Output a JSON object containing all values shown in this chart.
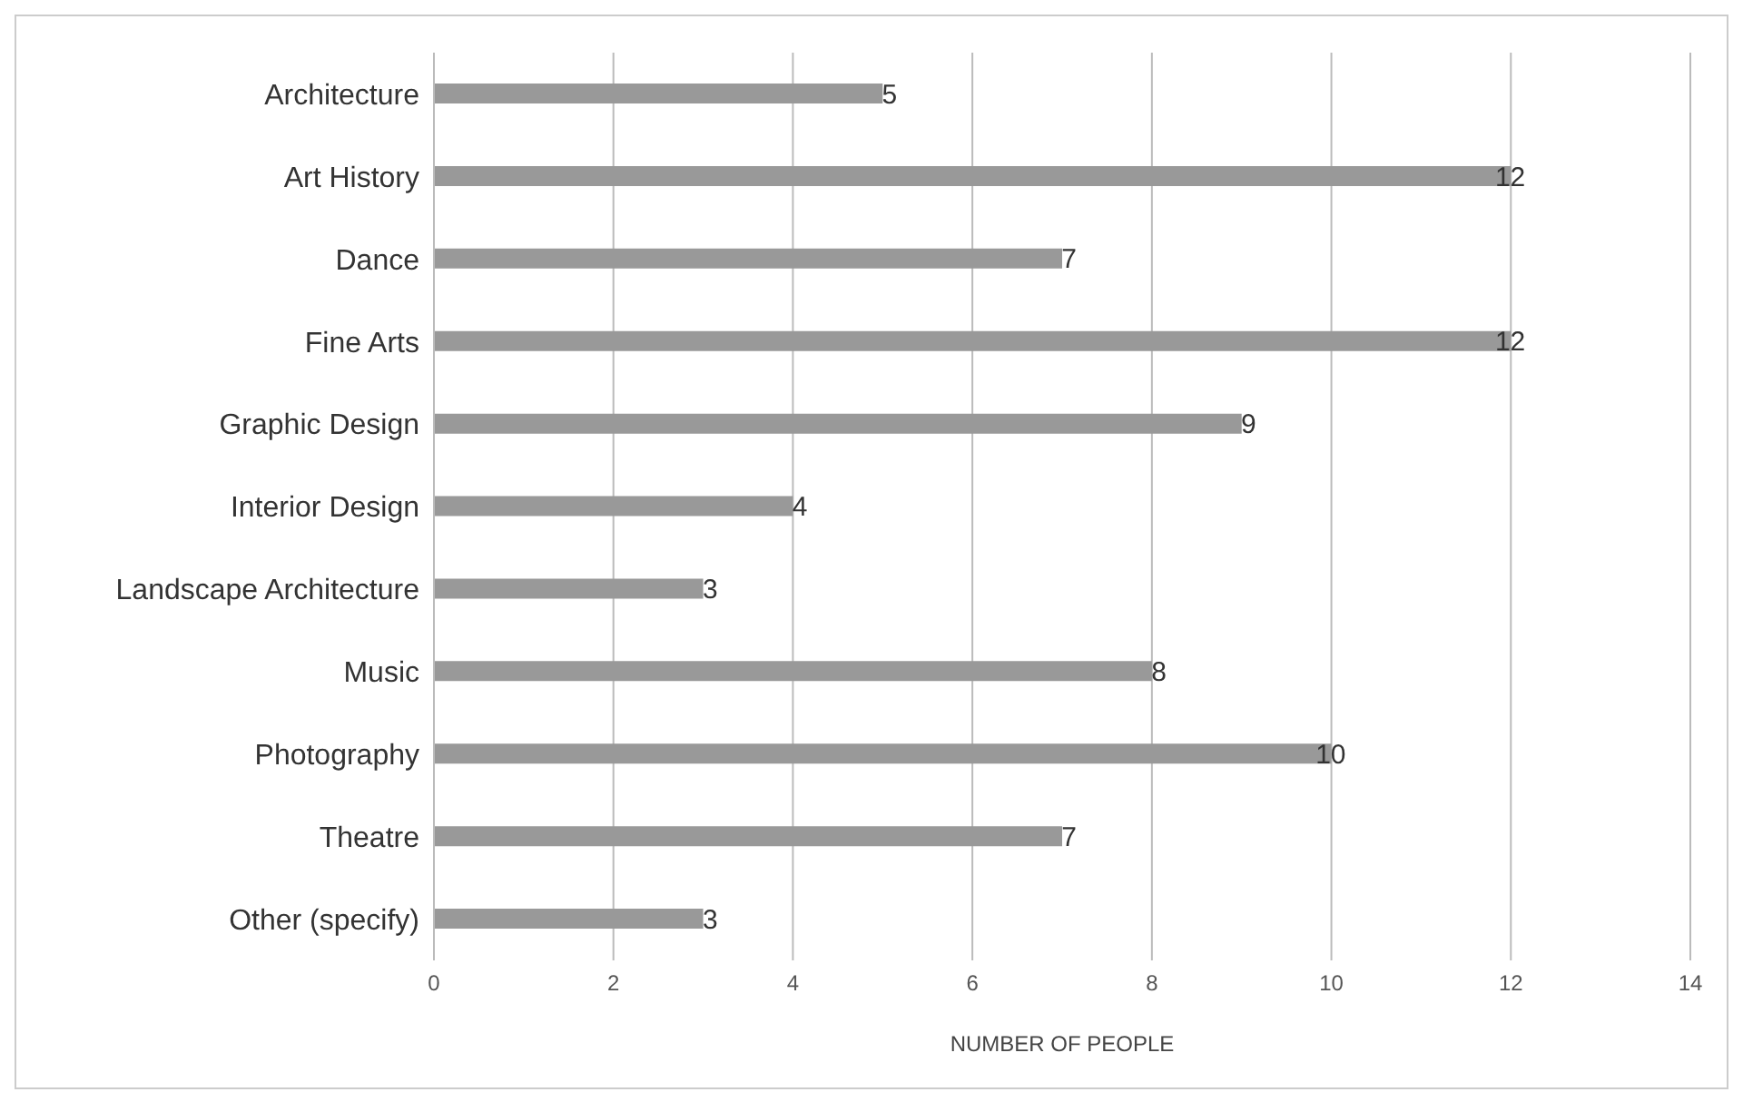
{
  "chart_data": {
    "type": "bar",
    "orientation": "horizontal",
    "xlabel": "NUMBER OF PEOPLE",
    "categories": [
      "Architecture",
      "Art History",
      "Dance",
      "Fine Arts",
      "Graphic Design",
      "Interior Design",
      "Landscape Architecture",
      "Music",
      "Photography",
      "Theatre",
      "Other (specify)"
    ],
    "values": [
      5,
      12,
      7,
      12,
      9,
      4,
      3,
      8,
      10,
      7,
      3
    ],
    "color": "#999999",
    "xlim": [
      0,
      14
    ],
    "xticks": [
      0,
      2,
      4,
      6,
      8,
      10,
      12,
      14
    ],
    "grid": "x",
    "data_labels": true
  }
}
